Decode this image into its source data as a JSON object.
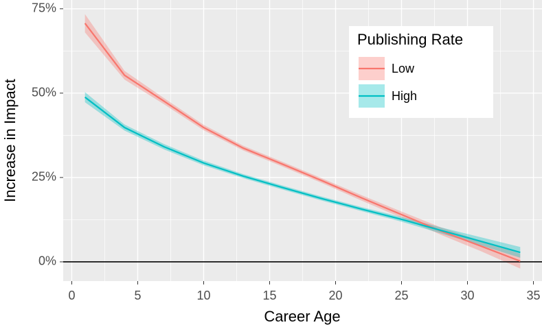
{
  "chart_data": {
    "type": "line",
    "x_label": "Career Age",
    "y_label": "Increase in Impact",
    "legend_title": "Publishing Rate",
    "legend_position": "top-right",
    "grid": true,
    "reference_line": 0,
    "xlim": [
      -0.65,
      35.65
    ],
    "ylim": [
      -5.7,
      77.6
    ],
    "xticks": [
      0,
      5,
      10,
      15,
      20,
      25,
      30,
      35
    ],
    "yticks": [
      {
        "value": 0,
        "label": "0%"
      },
      {
        "value": 25,
        "label": "25%"
      },
      {
        "value": 50,
        "label": "50%"
      },
      {
        "value": 75,
        "label": "75%"
      }
    ],
    "x": [
      1,
      4,
      7,
      10,
      13,
      16,
      19,
      22,
      25,
      28,
      31,
      34
    ],
    "series": [
      {
        "name": "Low",
        "color": "#F8766D",
        "values": [
          70.7,
          55.3,
          47.6,
          39.8,
          33.7,
          28.9,
          24.0,
          18.9,
          14.0,
          9.1,
          4.7,
          0.2
        ],
        "lower": [
          68.0,
          54.0,
          46.7,
          39.0,
          33.0,
          28.2,
          23.3,
          18.1,
          13.1,
          8.0,
          3.2,
          -2.0
        ],
        "upper": [
          73.4,
          56.6,
          48.5,
          40.6,
          34.4,
          29.6,
          24.7,
          19.7,
          14.9,
          10.2,
          6.2,
          2.4
        ]
      },
      {
        "name": "High",
        "color": "#00BFC4",
        "values": [
          48.8,
          39.8,
          34.1,
          29.3,
          25.4,
          22.0,
          18.7,
          15.6,
          12.6,
          9.3,
          6.1,
          2.8
        ],
        "lower": [
          47.3,
          38.9,
          33.3,
          28.6,
          24.8,
          21.4,
          18.1,
          15.0,
          11.9,
          8.4,
          4.9,
          1.2
        ],
        "upper": [
          50.3,
          40.7,
          34.9,
          30.0,
          26.0,
          22.6,
          19.3,
          16.2,
          13.3,
          10.2,
          7.3,
          4.4
        ]
      }
    ]
  }
}
